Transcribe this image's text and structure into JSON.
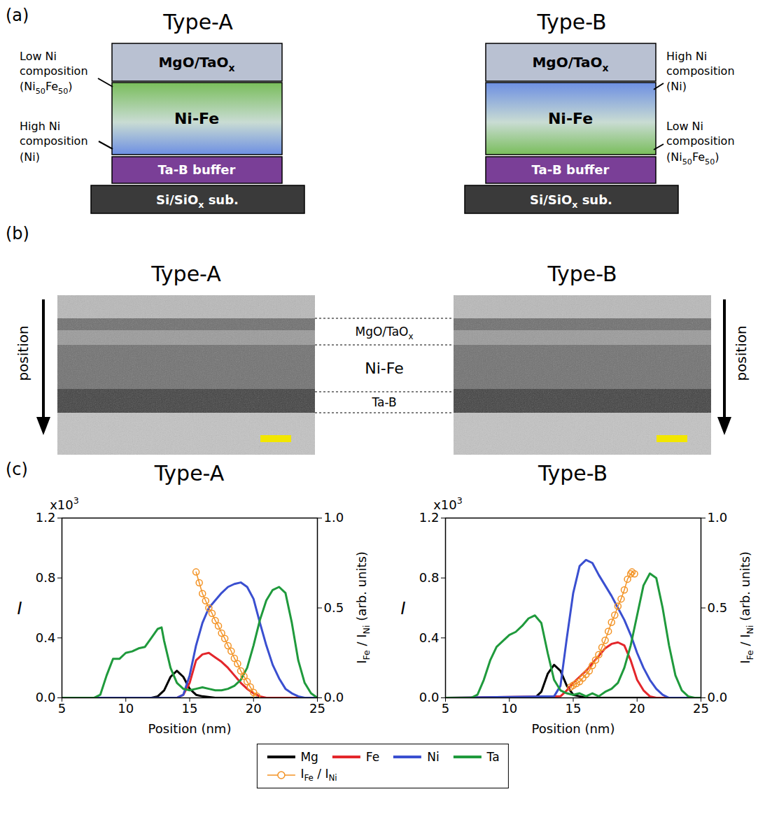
{
  "panels": [
    {
      "letter": "(a)",
      "diagrams": [
        {
          "title": "Type-A",
          "layers": [
            [
              "MgO/TaO",
              {
                "sub": "x"
              }
            ],
            "Ni-Fe",
            "Ta-B buffer",
            [
              "Si/SiO",
              {
                "sub": "x"
              },
              " sub."
            ]
          ],
          "top_label": [
            "Low Ni",
            "composition",
            [
              "(Ni",
              {
                "sub": "50"
              },
              "Fe",
              {
                "sub": "50"
              },
              ")"
            ]
          ],
          "bottom_label": [
            "High Ni",
            "composition",
            "(Ni)"
          ]
        },
        {
          "title": "Type-B",
          "layers": [
            [
              "MgO/TaO",
              {
                "sub": "x"
              }
            ],
            "Ni-Fe",
            "Ta-B buffer",
            [
              "Si/SiO",
              {
                "sub": "x"
              },
              " sub."
            ]
          ],
          "top_label": [
            "High Ni",
            "composition",
            "(Ni)"
          ],
          "bottom_label": [
            "Low Ni",
            "composition",
            [
              "(Ni",
              {
                "sub": "50"
              },
              "Fe",
              {
                "sub": "50"
              },
              ")"
            ]
          ]
        }
      ]
    },
    {
      "letter": "(b)",
      "images": [
        {
          "title": "Type-A",
          "axis_label": "position"
        },
        {
          "title": "Type-B",
          "axis_label": "position"
        }
      ],
      "layer_labels": [
        [
          "MgO/TaO",
          {
            "sub": "x"
          }
        ],
        "Ni-Fe",
        "Ta-B"
      ]
    },
    {
      "letter": "(c)"
    }
  ],
  "chart_data": [
    {
      "type": "line",
      "title": "Type-A",
      "x_label": "Position (nm)",
      "y_label": "I",
      "y_multiplier": [
        "x10",
        {
          "sup": "3"
        }
      ],
      "y2_label": [
        "I",
        {
          "sub": "Fe"
        },
        " / I",
        {
          "sub": "Ni"
        },
        " (arb. units)"
      ],
      "xlim": [
        5,
        25
      ],
      "xticks": [
        5,
        10,
        15,
        20,
        25
      ],
      "ylim": [
        0,
        1.2
      ],
      "yticks": [
        {
          "value": 0,
          "label": "0.0"
        },
        0.4,
        0.8,
        1.2
      ],
      "y2lim": [
        0,
        1
      ],
      "y2ticks": [
        {
          "value": 0,
          "label": "0.0"
        },
        0.5,
        {
          "value": 1,
          "label": "1.0"
        }
      ],
      "legend": "bottom",
      "series": [
        {
          "name": "Mg",
          "color": "#000000",
          "x": [
            5,
            12,
            12.5,
            13,
            13.5,
            14,
            14.5,
            15,
            15.5,
            16,
            17,
            25
          ],
          "values": [
            0,
            0,
            0.01,
            0.05,
            0.14,
            0.18,
            0.14,
            0.06,
            0.02,
            0.01,
            0,
            0
          ]
        },
        {
          "name": "Fe",
          "color": "#e3262b",
          "x": [
            5,
            14,
            14.5,
            15,
            15.5,
            16,
            16.5,
            17,
            17.5,
            18,
            18.5,
            19,
            19.5,
            20,
            20.5,
            21,
            25
          ],
          "values": [
            0,
            0,
            0.02,
            0.1,
            0.25,
            0.29,
            0.3,
            0.27,
            0.24,
            0.2,
            0.15,
            0.1,
            0.06,
            0.03,
            0.01,
            0,
            0
          ]
        },
        {
          "name": "Ni",
          "color": "#3a4fd0",
          "x": [
            5,
            14,
            14.5,
            15,
            15.5,
            16,
            16.5,
            17,
            17.5,
            18,
            18.5,
            19,
            19.5,
            20,
            20.5,
            21,
            21.5,
            22,
            22.5,
            23,
            23.5,
            24,
            25
          ],
          "values": [
            0,
            0,
            0.02,
            0.15,
            0.35,
            0.5,
            0.6,
            0.65,
            0.7,
            0.74,
            0.76,
            0.77,
            0.74,
            0.66,
            0.5,
            0.35,
            0.22,
            0.13,
            0.06,
            0.03,
            0.01,
            0,
            0
          ]
        },
        {
          "name": "Ta",
          "color": "#1f9a3c",
          "x": [
            5,
            7.5,
            8,
            8.5,
            9,
            9.5,
            10,
            10.5,
            11,
            11.5,
            12,
            12.5,
            12.8,
            13,
            13.5,
            14,
            14.5,
            15,
            15.5,
            16,
            16.5,
            17,
            17.5,
            18,
            18.5,
            19,
            19.5,
            20,
            20.5,
            21,
            21.5,
            22,
            22.5,
            23,
            23.5,
            24,
            24.5,
            25
          ],
          "values": [
            0,
            0,
            0.02,
            0.15,
            0.26,
            0.26,
            0.3,
            0.31,
            0.33,
            0.34,
            0.4,
            0.46,
            0.47,
            0.38,
            0.2,
            0.1,
            0.06,
            0.05,
            0.06,
            0.07,
            0.06,
            0.05,
            0.05,
            0.06,
            0.08,
            0.12,
            0.2,
            0.35,
            0.52,
            0.65,
            0.72,
            0.74,
            0.7,
            0.5,
            0.25,
            0.1,
            0.03,
            0
          ]
        },
        {
          "name": [
            "I",
            {
              "sub": "Fe"
            },
            " / I",
            {
              "sub": "Ni"
            }
          ],
          "color": "#f39325",
          "axis": "y2",
          "marker": "open_circle",
          "x": [
            15.5,
            15.75,
            16,
            16.25,
            16.5,
            16.75,
            17,
            17.25,
            17.5,
            17.75,
            18,
            18.25,
            18.5,
            18.75,
            19,
            19.25,
            19.5,
            19.75,
            20,
            20.25
          ],
          "values": [
            0.7,
            0.64,
            0.58,
            0.54,
            0.5,
            0.47,
            0.43,
            0.4,
            0.36,
            0.33,
            0.29,
            0.26,
            0.22,
            0.19,
            0.15,
            0.12,
            0.09,
            0.06,
            0.03,
            0.01
          ]
        }
      ]
    },
    {
      "type": "line",
      "title": "Type-B",
      "x_label": "Position (nm)",
      "y_label": "I",
      "y_multiplier": [
        "x10",
        {
          "sup": "3"
        }
      ],
      "y2_label": [
        "I",
        {
          "sub": "Fe"
        },
        " / I",
        {
          "sub": "Ni"
        },
        " (arb. units)"
      ],
      "xlim": [
        5,
        25
      ],
      "xticks": [
        5,
        10,
        15,
        20,
        25
      ],
      "ylim": [
        0,
        1.2
      ],
      "yticks": [
        {
          "value": 0,
          "label": "0.0"
        },
        0.4,
        0.8,
        1.2
      ],
      "y2lim": [
        0,
        1
      ],
      "y2ticks": [
        {
          "value": 0,
          "label": "0.0"
        },
        0.5,
        {
          "value": 1,
          "label": "1.0"
        }
      ],
      "legend": "bottom",
      "series": [
        {
          "name": "Mg",
          "color": "#000000",
          "x": [
            5,
            12,
            12.5,
            13,
            13.5,
            14,
            14.5,
            15,
            15.5,
            16,
            25
          ],
          "values": [
            0,
            0,
            0.04,
            0.16,
            0.22,
            0.18,
            0.08,
            0.02,
            0.01,
            0,
            0
          ]
        },
        {
          "name": "Fe",
          "color": "#e3262b",
          "x": [
            5,
            14,
            14.5,
            15,
            15.5,
            16,
            16.5,
            17,
            17.5,
            18,
            18.5,
            19,
            19.5,
            20,
            20.5,
            21,
            21.5,
            25
          ],
          "values": [
            0,
            0.01,
            0.05,
            0.1,
            0.14,
            0.18,
            0.23,
            0.28,
            0.33,
            0.36,
            0.37,
            0.35,
            0.25,
            0.12,
            0.05,
            0.01,
            0,
            0
          ]
        },
        {
          "name": "Ni",
          "color": "#3a4fd0",
          "x": [
            5,
            13.5,
            14,
            14.5,
            15,
            15.5,
            16,
            16.5,
            17,
            17.5,
            18,
            18.5,
            19,
            19.5,
            20,
            20.5,
            21,
            21.5,
            22,
            22.5,
            25
          ],
          "values": [
            0,
            0.01,
            0.08,
            0.4,
            0.7,
            0.88,
            0.92,
            0.9,
            0.82,
            0.75,
            0.68,
            0.6,
            0.52,
            0.42,
            0.3,
            0.2,
            0.12,
            0.06,
            0.02,
            0,
            0
          ]
        },
        {
          "name": "Ta",
          "color": "#1f9a3c",
          "x": [
            5,
            7,
            7.5,
            8,
            8.5,
            9,
            9.5,
            10,
            10.5,
            11,
            11.5,
            12,
            12.5,
            13,
            13.5,
            14,
            14.5,
            15,
            15.5,
            16,
            16.5,
            17,
            17.5,
            18,
            18.5,
            19,
            19.5,
            20,
            20.5,
            21,
            21.5,
            22,
            22.5,
            23,
            23.5,
            24,
            24.5,
            25
          ],
          "values": [
            0,
            0,
            0.02,
            0.12,
            0.25,
            0.34,
            0.38,
            0.42,
            0.44,
            0.48,
            0.53,
            0.55,
            0.5,
            0.3,
            0.12,
            0.05,
            0.03,
            0.02,
            0.03,
            0.01,
            0.03,
            0.01,
            0.04,
            0.06,
            0.1,
            0.2,
            0.35,
            0.55,
            0.75,
            0.83,
            0.8,
            0.6,
            0.35,
            0.15,
            0.05,
            0.01,
            0,
            0
          ]
        },
        {
          "name": [
            "I",
            {
              "sub": "Fe"
            },
            " / I",
            {
              "sub": "Ni"
            }
          ],
          "color": "#f39325",
          "axis": "y2",
          "marker": "open_circle",
          "x": [
            14.8,
            15,
            15.25,
            15.5,
            15.75,
            16,
            16.25,
            16.5,
            16.75,
            17,
            17.25,
            17.5,
            17.75,
            18,
            18.25,
            18.5,
            18.75,
            19,
            19.25,
            19.5,
            19.6,
            19.8
          ],
          "values": [
            0.06,
            0.07,
            0.08,
            0.09,
            0.11,
            0.13,
            0.15,
            0.18,
            0.21,
            0.24,
            0.28,
            0.32,
            0.37,
            0.42,
            0.46,
            0.51,
            0.55,
            0.6,
            0.66,
            0.69,
            0.7,
            0.69
          ]
        }
      ]
    }
  ]
}
